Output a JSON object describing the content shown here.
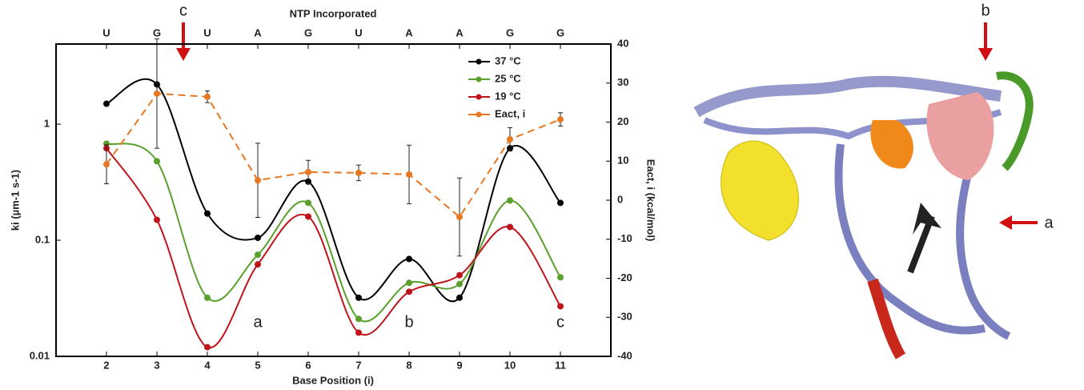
{
  "chart_data": {
    "type": "line",
    "top_axis_label": "NTP Incorporated",
    "top_categories": [
      "U",
      "G",
      "U",
      "A",
      "G",
      "U",
      "A",
      "A",
      "G",
      "G"
    ],
    "xlabel": "Base Position (i)",
    "ylabel": "ki (µm-1 s-1)",
    "y2label": "Eact, i (kcal/mol)",
    "x": [
      2,
      3,
      4,
      5,
      6,
      7,
      8,
      9,
      10,
      11
    ],
    "xlim": [
      1,
      12
    ],
    "xticks": [
      2,
      3,
      4,
      5,
      6,
      7,
      8,
      9,
      10,
      11
    ],
    "ylog": true,
    "ylim": [
      0.01,
      4.9
    ],
    "yticks": [
      0.01,
      0.1,
      1
    ],
    "y2lim": [
      -40,
      40
    ],
    "y2ticks": [
      -40,
      -30,
      -20,
      -10,
      0,
      10,
      20,
      30,
      40
    ],
    "series": [
      {
        "name": "37 °C",
        "color": "#000000",
        "smooth": true,
        "values": [
          1.5,
          2.2,
          0.17,
          0.105,
          0.32,
          0.032,
          0.069,
          0.032,
          0.62,
          0.21
        ]
      },
      {
        "name": "25 °C",
        "color": "#5aa02c",
        "smooth": true,
        "values": [
          0.68,
          0.48,
          0.032,
          0.075,
          0.21,
          0.021,
          0.043,
          0.042,
          0.22,
          0.048
        ]
      },
      {
        "name": "19 °C",
        "color": "#c0141c",
        "smooth": true,
        "values": [
          0.62,
          0.15,
          0.012,
          0.062,
          0.16,
          0.016,
          0.036,
          0.05,
          0.13,
          0.027
        ]
      },
      {
        "name": "Eact, i",
        "color": "#e87722",
        "axis": "y2",
        "dashed": true,
        "values": [
          9.2,
          27.3,
          26.5,
          5.1,
          7.2,
          7.0,
          6.6,
          -4.3,
          15.6,
          20.7
        ],
        "errors": [
          5,
          14,
          1.5,
          9.5,
          3,
          2,
          7.5,
          10,
          3,
          1.7
        ]
      }
    ],
    "annotations": [
      {
        "text": "a",
        "x": 5
      },
      {
        "text": "b",
        "x": 8
      },
      {
        "text": "c",
        "x": 11
      }
    ]
  },
  "image_labels": [
    "c",
    "b",
    "a"
  ]
}
